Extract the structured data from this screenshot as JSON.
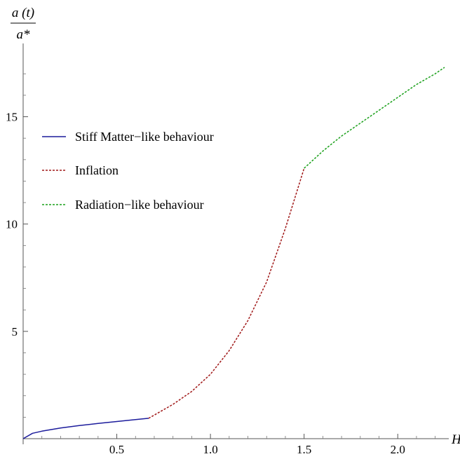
{
  "chart_data": {
    "type": "line",
    "title": "",
    "xlabel": "H*t",
    "ylabel": "a (t) / a*",
    "xlim": [
      0,
      2.25
    ],
    "ylim": [
      0,
      17.5
    ],
    "xticks": [
      0.5,
      1.0,
      1.5,
      2.0
    ],
    "xtick_labels": [
      "0.5",
      "1.0",
      "1.5",
      "2.0"
    ],
    "yticks": [
      5,
      10,
      15
    ],
    "ytick_labels": [
      "5",
      "10",
      "15"
    ],
    "grid": false,
    "legend_position": "left",
    "series": [
      {
        "name": "Stiff Matter−like behaviour",
        "color": "#1c1c9c",
        "style": "solid",
        "x": [
          0,
          0.05,
          0.1,
          0.2,
          0.3,
          0.4,
          0.5,
          0.6,
          0.67
        ],
        "y": [
          0,
          0.25,
          0.35,
          0.5,
          0.61,
          0.71,
          0.8,
          0.89,
          0.95
        ]
      },
      {
        "name": "Inflation",
        "color": "#a01818",
        "style": "dashed",
        "x": [
          0.67,
          0.8,
          0.9,
          1.0,
          1.1,
          1.2,
          1.3,
          1.4,
          1.5
        ],
        "y": [
          0.95,
          1.6,
          2.2,
          3.0,
          4.1,
          5.5,
          7.3,
          9.8,
          12.6
        ]
      },
      {
        "name": "Radiation−like behaviour",
        "color": "#1aa01a",
        "style": "dashed",
        "x": [
          1.5,
          1.6,
          1.7,
          1.8,
          1.9,
          2.0,
          2.1,
          2.2,
          2.25
        ],
        "y": [
          12.6,
          13.4,
          14.1,
          14.7,
          15.3,
          15.9,
          16.5,
          17.0,
          17.3
        ]
      }
    ]
  }
}
